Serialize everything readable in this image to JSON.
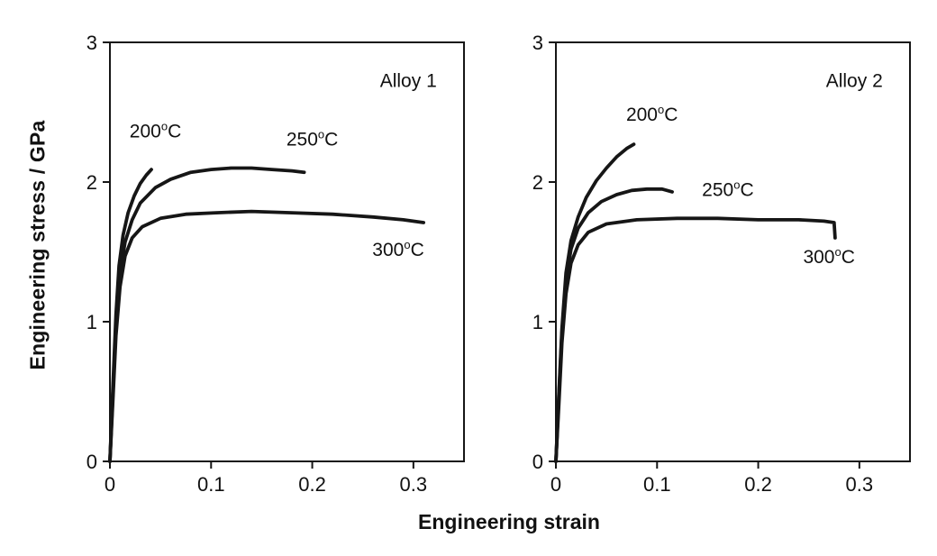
{
  "figure": {
    "xlabel": "Engineering strain",
    "ylabel": "Engineering stress / GPa",
    "ink": "#161616",
    "background": "#ffffff"
  },
  "chart_data": [
    {
      "type": "line",
      "title": "Alloy 1",
      "title_pos": {
        "x": 0.295,
        "y": 2.68
      },
      "xlabel": "Engineering strain",
      "ylabel": "Engineering stress / GPa",
      "xlim": [
        0,
        0.35
      ],
      "ylim": [
        0,
        3
      ],
      "xticks": [
        0,
        0.1,
        0.2,
        0.3
      ],
      "yticks": [
        0,
        1,
        2,
        3
      ],
      "grid": false,
      "legend": "none",
      "series": [
        {
          "name": "200°C",
          "x": [
            0,
            0.003,
            0.006,
            0.009,
            0.013,
            0.018,
            0.024,
            0.03,
            0.036,
            0.041
          ],
          "y": [
            0,
            0.55,
            1.05,
            1.4,
            1.62,
            1.78,
            1.9,
            1.99,
            2.05,
            2.09
          ]
        },
        {
          "name": "250°C",
          "x": [
            0,
            0.003,
            0.006,
            0.01,
            0.015,
            0.022,
            0.03,
            0.045,
            0.06,
            0.08,
            0.1,
            0.12,
            0.14,
            0.16,
            0.18,
            0.192
          ],
          "y": [
            0,
            0.5,
            0.95,
            1.35,
            1.57,
            1.73,
            1.85,
            1.96,
            2.02,
            2.07,
            2.09,
            2.1,
            2.1,
            2.09,
            2.08,
            2.07
          ]
        },
        {
          "name": "300°C",
          "x": [
            0,
            0.003,
            0.006,
            0.01,
            0.015,
            0.022,
            0.032,
            0.05,
            0.075,
            0.105,
            0.14,
            0.18,
            0.22,
            0.26,
            0.29,
            0.31
          ],
          "y": [
            0,
            0.45,
            0.9,
            1.25,
            1.47,
            1.6,
            1.68,
            1.74,
            1.77,
            1.78,
            1.79,
            1.78,
            1.77,
            1.75,
            1.73,
            1.71
          ]
        }
      ],
      "annotations": [
        {
          "text": "200°C",
          "x": 0.045,
          "y": 2.32
        },
        {
          "text": "250°C",
          "x": 0.2,
          "y": 2.26
        },
        {
          "text": "300°C",
          "x": 0.285,
          "y": 1.47
        }
      ]
    },
    {
      "type": "line",
      "title": "Alloy 2",
      "title_pos": {
        "x": 0.295,
        "y": 2.68
      },
      "xlabel": "Engineering strain",
      "ylabel": "Engineering stress / GPa",
      "xlim": [
        0,
        0.35
      ],
      "ylim": [
        0,
        3
      ],
      "xticks": [
        0,
        0.1,
        0.2,
        0.3
      ],
      "yticks": [
        0,
        1,
        2,
        3
      ],
      "grid": false,
      "legend": "none",
      "series": [
        {
          "name": "200°C",
          "x": [
            0,
            0.003,
            0.006,
            0.01,
            0.015,
            0.022,
            0.03,
            0.04,
            0.05,
            0.06,
            0.07,
            0.077
          ],
          "y": [
            0,
            0.5,
            0.95,
            1.35,
            1.58,
            1.75,
            1.89,
            2.01,
            2.1,
            2.18,
            2.24,
            2.27
          ]
        },
        {
          "name": "250°C",
          "x": [
            0,
            0.003,
            0.006,
            0.01,
            0.015,
            0.022,
            0.032,
            0.045,
            0.06,
            0.075,
            0.09,
            0.105,
            0.115
          ],
          "y": [
            0,
            0.48,
            0.92,
            1.3,
            1.52,
            1.67,
            1.78,
            1.86,
            1.91,
            1.94,
            1.95,
            1.95,
            1.93
          ]
        },
        {
          "name": "300°C",
          "x": [
            0,
            0.003,
            0.006,
            0.01,
            0.015,
            0.022,
            0.032,
            0.05,
            0.08,
            0.12,
            0.16,
            0.2,
            0.24,
            0.265,
            0.275,
            0.276
          ],
          "y": [
            0,
            0.42,
            0.85,
            1.2,
            1.42,
            1.55,
            1.64,
            1.7,
            1.73,
            1.74,
            1.74,
            1.73,
            1.73,
            1.72,
            1.71,
            1.6
          ]
        }
      ],
      "annotations": [
        {
          "text": "200°C",
          "x": 0.095,
          "y": 2.44
        },
        {
          "text": "250°C",
          "x": 0.17,
          "y": 1.9
        },
        {
          "text": "300°C",
          "x": 0.27,
          "y": 1.42
        }
      ]
    }
  ]
}
